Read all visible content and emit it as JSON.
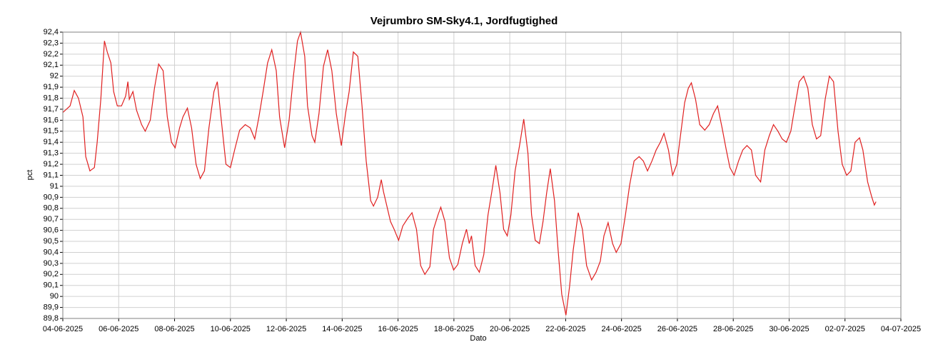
{
  "chart_data": {
    "type": "line",
    "title": "Vejrumbro SM-Sky4.1, Jordfugtighed",
    "xlabel": "Dato",
    "ylabel": "pct",
    "color": "#e02020",
    "grid": true,
    "xlim": [
      0,
      30
    ],
    "xticks": [
      {
        "value": 0,
        "label": "04-06-2025"
      },
      {
        "value": 2,
        "label": "06-06-2025"
      },
      {
        "value": 4,
        "label": "08-06-2025"
      },
      {
        "value": 6,
        "label": "10-06-2025"
      },
      {
        "value": 8,
        "label": "12-06-2025"
      },
      {
        "value": 10,
        "label": "14-06-2025"
      },
      {
        "value": 12,
        "label": "16-06-2025"
      },
      {
        "value": 14,
        "label": "18-06-2025"
      },
      {
        "value": 16,
        "label": "20-06-2025"
      },
      {
        "value": 18,
        "label": "22-06-2025"
      },
      {
        "value": 20,
        "label": "24-06-2025"
      },
      {
        "value": 22,
        "label": "26-06-2025"
      },
      {
        "value": 24,
        "label": "28-06-2025"
      },
      {
        "value": 26,
        "label": "30-06-2025"
      },
      {
        "value": 28,
        "label": "02-07-2025"
      },
      {
        "value": 30,
        "label": "04-07-2025"
      }
    ],
    "ylim": [
      89.8,
      92.4
    ],
    "yticks": [
      {
        "value": 89.8,
        "label": "89,8"
      },
      {
        "value": 89.9,
        "label": "89,9"
      },
      90,
      {
        "value": 90.1,
        "label": "90,1"
      },
      {
        "value": 90.2,
        "label": "90,2"
      },
      {
        "value": 90.3,
        "label": "90,3"
      },
      {
        "value": 90.4,
        "label": "90,4"
      },
      {
        "value": 90.5,
        "label": "90,5"
      },
      {
        "value": 90.6,
        "label": "90,6"
      },
      {
        "value": 90.7,
        "label": "90,7"
      },
      {
        "value": 90.8,
        "label": "90,8"
      },
      {
        "value": 90.9,
        "label": "90,9"
      },
      91,
      {
        "value": 91.1,
        "label": "91,1"
      },
      {
        "value": 91.2,
        "label": "91,2"
      },
      {
        "value": 91.3,
        "label": "91,3"
      },
      {
        "value": 91.4,
        "label": "91,4"
      },
      {
        "value": 91.5,
        "label": "91,5"
      },
      {
        "value": 91.6,
        "label": "91,6"
      },
      {
        "value": 91.7,
        "label": "91,7"
      },
      {
        "value": 91.8,
        "label": "91,8"
      },
      {
        "value": 91.9,
        "label": "91,9"
      },
      92,
      {
        "value": 92.1,
        "label": "92,1"
      },
      {
        "value": 92.2,
        "label": "92,2"
      },
      {
        "value": 92.3,
        "label": "92,3"
      },
      {
        "value": 92.4,
        "label": "92,4"
      }
    ],
    "x": [
      0,
      0.26,
      0.41,
      0.56,
      0.72,
      0.82,
      0.97,
      1.13,
      1.23,
      1.36,
      1.49,
      1.59,
      1.72,
      1.82,
      1.95,
      2.1,
      2.25,
      2.33,
      2.38,
      2.51,
      2.64,
      2.82,
      2.95,
      3.13,
      3.28,
      3.43,
      3.59,
      3.74,
      3.89,
      4.02,
      4.18,
      4.3,
      4.46,
      4.61,
      4.77,
      4.92,
      5.07,
      5.23,
      5.41,
      5.53,
      5.69,
      5.84,
      6.0,
      6.15,
      6.33,
      6.53,
      6.71,
      6.87,
      7.02,
      7.17,
      7.33,
      7.48,
      7.64,
      7.76,
      7.94,
      8.1,
      8.25,
      8.4,
      8.51,
      8.66,
      8.76,
      8.92,
      9.02,
      9.17,
      9.33,
      9.48,
      9.63,
      9.79,
      9.97,
      10.12,
      10.25,
      10.4,
      10.56,
      10.71,
      10.86,
      11.02,
      11.12,
      11.27,
      11.4,
      11.48,
      11.61,
      11.73,
      11.86,
      12.02,
      12.17,
      12.35,
      12.5,
      12.66,
      12.81,
      12.96,
      13.14,
      13.27,
      13.43,
      13.53,
      13.68,
      13.84,
      13.99,
      14.14,
      14.3,
      14.45,
      14.55,
      14.63,
      14.76,
      14.91,
      15.07,
      15.22,
      15.35,
      15.5,
      15.65,
      15.78,
      15.91,
      16.04,
      16.19,
      16.35,
      16.5,
      16.65,
      16.78,
      16.91,
      17.06,
      17.19,
      17.32,
      17.45,
      17.6,
      17.73,
      17.86,
      18.01,
      18.14,
      18.27,
      18.45,
      18.6,
      18.75,
      18.93,
      19.09,
      19.24,
      19.37,
      19.52,
      19.68,
      19.81,
      19.98,
      20.14,
      20.29,
      20.45,
      20.63,
      20.78,
      20.93,
      21.09,
      21.24,
      21.39,
      21.52,
      21.68,
      21.83,
      21.98,
      22.11,
      22.26,
      22.39,
      22.5,
      22.65,
      22.8,
      22.98,
      23.14,
      23.29,
      23.44,
      23.6,
      23.75,
      23.88,
      24.03,
      24.19,
      24.34,
      24.49,
      24.65,
      24.8,
      24.98,
      25.13,
      25.29,
      25.44,
      25.6,
      25.75,
      25.9,
      26.06,
      26.21,
      26.36,
      26.52,
      26.67,
      26.83,
      26.98,
      27.13,
      27.29,
      27.44,
      27.59,
      27.75,
      27.9,
      28.06,
      28.21,
      28.36,
      28.52,
      28.64,
      28.81,
      28.95,
      29.05,
      29.11
    ],
    "values": [
      91.67,
      91.73,
      91.87,
      91.8,
      91.63,
      91.27,
      91.14,
      91.17,
      91.4,
      91.79,
      92.32,
      92.22,
      92.12,
      91.86,
      91.73,
      91.73,
      91.82,
      91.95,
      91.79,
      91.86,
      91.69,
      91.56,
      91.5,
      91.6,
      91.89,
      92.11,
      92.05,
      91.63,
      91.4,
      91.35,
      91.53,
      91.63,
      91.71,
      91.53,
      91.2,
      91.07,
      91.14,
      91.53,
      91.86,
      91.95,
      91.56,
      91.2,
      91.17,
      91.33,
      91.51,
      91.56,
      91.53,
      91.43,
      91.63,
      91.86,
      92.12,
      92.24,
      92.05,
      91.63,
      91.35,
      91.6,
      91.99,
      92.32,
      92.4,
      92.18,
      91.73,
      91.46,
      91.4,
      91.66,
      92.09,
      92.24,
      92.05,
      91.66,
      91.37,
      91.66,
      91.86,
      92.22,
      92.18,
      91.73,
      91.23,
      90.87,
      90.82,
      90.9,
      91.06,
      90.95,
      90.81,
      90.68,
      90.61,
      90.51,
      90.64,
      90.71,
      90.76,
      90.61,
      90.28,
      90.2,
      90.27,
      90.61,
      90.74,
      90.81,
      90.68,
      90.35,
      90.24,
      90.29,
      90.48,
      90.61,
      90.48,
      90.55,
      90.28,
      90.22,
      90.38,
      90.74,
      90.94,
      91.19,
      90.94,
      90.61,
      90.55,
      90.74,
      91.14,
      91.37,
      91.61,
      91.3,
      90.74,
      90.51,
      90.48,
      90.68,
      90.94,
      91.16,
      90.87,
      90.42,
      90.02,
      89.83,
      90.09,
      90.42,
      90.76,
      90.61,
      90.28,
      90.15,
      90.22,
      90.32,
      90.55,
      90.67,
      90.48,
      90.4,
      90.48,
      90.74,
      91.01,
      91.23,
      91.27,
      91.23,
      91.14,
      91.23,
      91.33,
      91.4,
      91.48,
      91.33,
      91.1,
      91.2,
      91.46,
      91.76,
      91.89,
      91.94,
      91.79,
      91.56,
      91.51,
      91.56,
      91.66,
      91.73,
      91.53,
      91.33,
      91.17,
      91.1,
      91.23,
      91.33,
      91.37,
      91.33,
      91.1,
      91.04,
      91.33,
      91.46,
      91.56,
      91.5,
      91.43,
      91.4,
      91.5,
      91.73,
      91.95,
      92.0,
      91.89,
      91.56,
      91.43,
      91.46,
      91.79,
      92.0,
      91.95,
      91.5,
      91.2,
      91.1,
      91.14,
      91.4,
      91.44,
      91.33,
      91.04,
      90.91,
      90.83,
      90.86
    ]
  }
}
